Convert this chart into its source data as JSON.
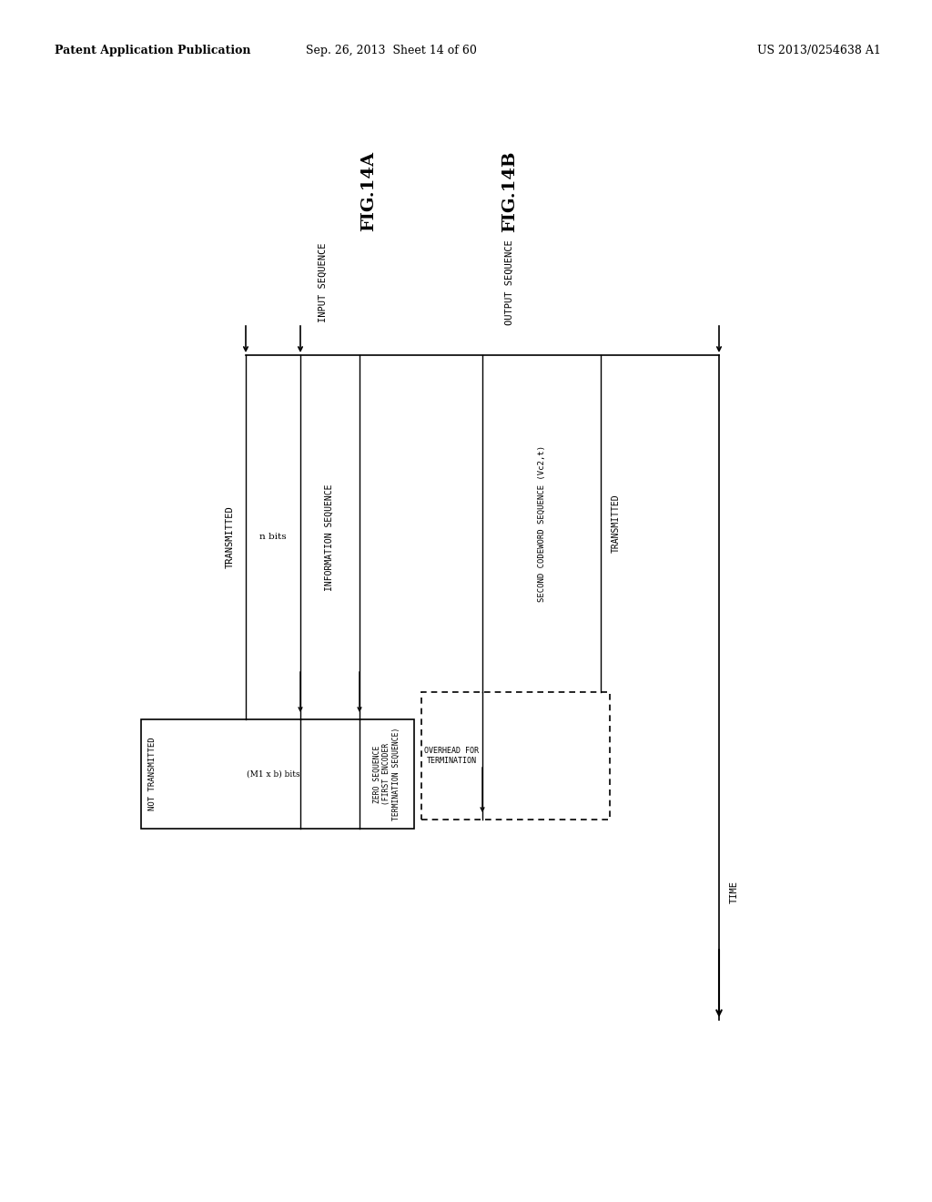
{
  "header_left": "Patent Application Publication",
  "header_center": "Sep. 26, 2013  Sheet 14 of 60",
  "header_right": "US 2013/0254638 A1",
  "fig_a_label": "FIG.14A",
  "fig_b_label": "FIG.14B",
  "input_sequence_label": "INPUT SEQUENCE",
  "output_sequence_label": "OUTPUT SEQUENCE",
  "transmitted_label": "TRANSMITTED",
  "not_transmitted_label": "NOT TRANSMITTED",
  "n_bits_label": "n bits",
  "m1b_bits_label": "(M1 x b) bits",
  "info_seq_label": "INFORMATION SEQUENCE",
  "zero_seq_label": "ZERO SEQUENCE\n(FIRST ENCODER\nTERMINATION SEQUENCE)",
  "overhead_label": "OVERHEAD FOR\nTERMINATION",
  "second_codeword_label": "SECOND CODEWORD SEQUENCE (Vc2,t)",
  "transmitted2_label": "TRANSMITTED",
  "time_label": "TIME",
  "bg_color": "#ffffff",
  "line_color": "#000000"
}
